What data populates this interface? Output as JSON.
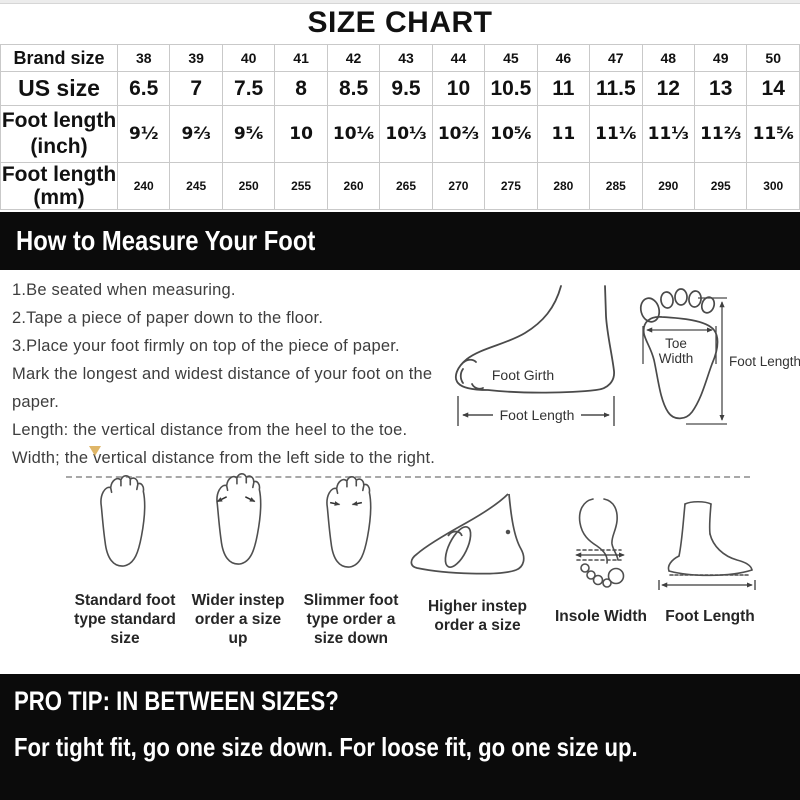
{
  "title": "SIZE CHART",
  "colors": {
    "banner_bg": "#0b0b0b",
    "marker": "#d9a94e"
  },
  "size_table": {
    "rows": [
      {
        "key": "brand",
        "label_lines": [
          "Brand size"
        ],
        "values": [
          "38",
          "39",
          "40",
          "41",
          "42",
          "43",
          "44",
          "45",
          "46",
          "47",
          "48",
          "49",
          "50"
        ]
      },
      {
        "key": "us",
        "label_lines": [
          "US size"
        ],
        "values": [
          "6.5",
          "7",
          "7.5",
          "8",
          "8.5",
          "9.5",
          "10",
          "10.5",
          "11",
          "11.5",
          "12",
          "13",
          "14"
        ]
      },
      {
        "key": "inch",
        "label_lines": [
          "Foot length",
          "(inch)"
        ],
        "values": [
          "9½",
          "9⅔",
          "9⅚",
          "10",
          "10⅙",
          "10⅓",
          "10⅔",
          "10⅚",
          "11",
          "11⅙",
          "11⅓",
          "11⅔",
          "11⅚"
        ]
      },
      {
        "key": "mm",
        "label_lines": [
          "Foot length",
          "(mm)"
        ],
        "values": [
          "240",
          "245",
          "250",
          "255",
          "260",
          "265",
          "270",
          "275",
          "280",
          "285",
          "290",
          "295",
          "300"
        ]
      }
    ]
  },
  "measure_section": {
    "heading": "How to Measure Your Foot",
    "instructions": [
      "1.Be seated when measuring.",
      "2.Tape a piece of paper down to the floor.",
      "3.Place your foot firmly on top of the piece of paper.",
      "Mark the longest and widest distance of your foot on the paper.",
      "Length: the vertical distance from the heel to the toe.",
      "Width; the vertical distance from the left side to the right."
    ]
  },
  "diagrams": {
    "side_view": {
      "girth_label": "Foot Girth",
      "length_label": "Foot Length"
    },
    "footprint": {
      "toe_width_lines": [
        "Toe",
        "Width"
      ],
      "length_label": "Foot Length"
    }
  },
  "foot_types": [
    {
      "label_lines": [
        "Standard foot",
        "type standard",
        "size"
      ]
    },
    {
      "label_lines": [
        "Wider instep",
        "order a size",
        "up"
      ]
    },
    {
      "label_lines": [
        "Slimmer foot",
        "type order a",
        "size down"
      ]
    },
    {
      "label_lines": [
        "Higher instep",
        "order a size"
      ]
    },
    {
      "label_lines": [
        "Insole Width"
      ]
    },
    {
      "label_lines": [
        "Foot Length"
      ]
    }
  ],
  "pro_tip": {
    "heading": "PRO TIP: IN BETWEEN SIZES?",
    "advice": "For tight fit, go one size down. For loose fit, go one size up."
  }
}
